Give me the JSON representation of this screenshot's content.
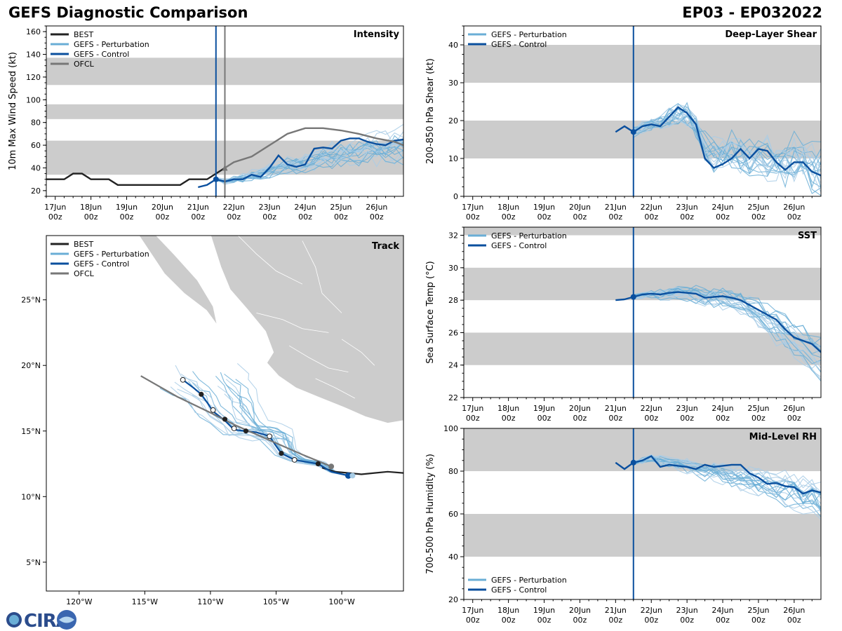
{
  "header": {
    "title_left": "GEFS Diagnostic Comparison",
    "title_right": "EP03 - EP032022"
  },
  "logo": {
    "text": "CIRA"
  },
  "colors": {
    "best": "#222222",
    "perturbation": "#6aaed6",
    "perturbation_light": "#a9cde6",
    "control": "#0a4f9e",
    "ofcl": "#777777",
    "band": "#cccccc",
    "land": "#cccccc"
  },
  "time_axis": {
    "ticks": [
      {
        "day": 0,
        "line1": "17Jun",
        "line2": "00z"
      },
      {
        "day": 1,
        "line1": "18Jun",
        "line2": "00z"
      },
      {
        "day": 2,
        "line1": "19Jun",
        "line2": "00z"
      },
      {
        "day": 3,
        "line1": "20Jun",
        "line2": "00z"
      },
      {
        "day": 4,
        "line1": "21Jun",
        "line2": "00z"
      },
      {
        "day": 5,
        "line1": "22Jun",
        "line2": "00z"
      },
      {
        "day": 6,
        "line1": "23Jun",
        "line2": "00z"
      },
      {
        "day": 7,
        "line1": "24Jun",
        "line2": "00z"
      },
      {
        "day": 8,
        "line1": "25Jun",
        "line2": "00z"
      },
      {
        "day": 9,
        "line1": "26Jun",
        "line2": "00z"
      }
    ],
    "range": [
      -0.25,
      9.75
    ],
    "init_day": 4.5
  },
  "chart_data": [
    {
      "id": "intensity",
      "type": "line",
      "title": "Intensity",
      "ylabel": "10m Max Wind Speed (kt)",
      "ylim": [
        15,
        165
      ],
      "yticks": [
        20,
        40,
        60,
        80,
        100,
        120,
        140,
        160
      ],
      "bands": [
        [
          34,
          64
        ],
        [
          83,
          96
        ],
        [
          113,
          137
        ]
      ],
      "ofcl_marker_day": 4.75,
      "legend": [
        "BEST",
        "GEFS - Perturbation",
        "GEFS - Control",
        "OFCL"
      ],
      "series": [
        {
          "name": "BEST",
          "x": [
            -0.25,
            0,
            0.25,
            0.5,
            0.75,
            1,
            1.25,
            1.5,
            1.75,
            2,
            2.25,
            2.5,
            2.75,
            3,
            3.25,
            3.5,
            3.75,
            4,
            4.25,
            4.5,
            4.75
          ],
          "y": [
            30,
            30,
            30,
            35,
            35,
            30,
            30,
            30,
            25,
            25,
            25,
            25,
            25,
            25,
            25,
            25,
            30,
            30,
            30,
            35,
            40
          ]
        },
        {
          "name": "GEFS - Control",
          "x": [
            4,
            4.25,
            4.5,
            4.75,
            5,
            5.25,
            5.5,
            5.75,
            6,
            6.25,
            6.5,
            6.75,
            7,
            7.25,
            7.5,
            7.75,
            8,
            8.25,
            8.5,
            8.75,
            9,
            9.25,
            9.5,
            9.75
          ],
          "y": [
            23,
            25,
            30,
            28,
            30,
            30,
            34,
            32,
            40,
            51,
            43,
            41,
            43,
            57,
            58,
            57,
            64,
            66,
            66,
            63,
            61,
            60,
            64,
            65
          ]
        },
        {
          "name": "OFCL",
          "x": [
            4.75,
            5,
            5.5,
            6,
            6.5,
            7,
            7.5,
            8,
            8.5,
            9,
            9.5,
            9.75
          ],
          "y": [
            40,
            45,
            50,
            60,
            70,
            75,
            75,
            73,
            70,
            66,
            63,
            60
          ]
        }
      ],
      "perturbation_mean": {
        "x": [
          4.5,
          4.75,
          5,
          5.25,
          5.5,
          5.75,
          6,
          6.25,
          6.5,
          6.75,
          7,
          7.25,
          7.5,
          7.75,
          8,
          8.25,
          8.5,
          8.75,
          9,
          9.25,
          9.5,
          9.75
        ],
        "y": [
          30,
          28,
          29,
          31,
          33,
          34,
          37,
          40,
          41,
          42,
          44,
          47,
          49,
          50,
          52,
          53,
          54,
          55,
          55,
          56,
          57,
          57
        ]
      }
    },
    {
      "id": "shear",
      "type": "line",
      "title": "Deep-Layer Shear",
      "ylabel": "200-850 hPa Shear (kt)",
      "ylim": [
        0,
        45
      ],
      "yticks": [
        0,
        10,
        20,
        30,
        40
      ],
      "bands": [
        [
          10,
          20
        ],
        [
          30,
          40
        ]
      ],
      "legend": [
        "GEFS - Perturbation",
        "GEFS - Control"
      ],
      "series": [
        {
          "name": "GEFS - Control",
          "x": [
            4,
            4.25,
            4.5,
            4.75,
            5,
            5.25,
            5.5,
            5.75,
            6,
            6.25,
            6.5,
            6.75,
            7,
            7.25,
            7.5,
            7.75,
            8,
            8.25,
            8.5,
            8.75,
            9,
            9.25,
            9.5,
            9.75
          ],
          "y": [
            17,
            18.5,
            17,
            18.5,
            19,
            18.5,
            21,
            23.5,
            22,
            19,
            10,
            7.5,
            8.5,
            10,
            12.5,
            10,
            12.5,
            12,
            9,
            7,
            9,
            9,
            6.5,
            5.5
          ]
        }
      ],
      "perturbation_mean": {
        "x": [
          4.5,
          4.75,
          5,
          5.25,
          5.5,
          5.75,
          6,
          6.25,
          6.5,
          6.75,
          7,
          7.25,
          7.5,
          7.75,
          8,
          8.25,
          8.5,
          8.75,
          9,
          9.25,
          9.5,
          9.75
        ],
        "y": [
          17,
          18,
          19,
          20,
          21,
          22,
          21,
          18,
          13,
          11,
          11,
          12,
          11,
          10,
          11,
          10,
          9,
          9,
          10,
          9,
          8,
          7
        ]
      }
    },
    {
      "id": "sst",
      "type": "line",
      "title": "SST",
      "ylabel": "Sea Surface Temp (°C)",
      "ylim": [
        22,
        32.5
      ],
      "yticks": [
        22,
        24,
        26,
        28,
        30,
        32
      ],
      "bands": [
        [
          24,
          26
        ],
        [
          28,
          30
        ],
        [
          32,
          32.5
        ]
      ],
      "legend": [
        "GEFS - Perturbation",
        "GEFS - Control"
      ],
      "series": [
        {
          "name": "GEFS - Control",
          "x": [
            4,
            4.25,
            4.5,
            4.75,
            5,
            5.25,
            5.5,
            5.75,
            6,
            6.25,
            6.5,
            6.75,
            7,
            7.25,
            7.5,
            7.75,
            8,
            8.25,
            8.5,
            8.75,
            9,
            9.25,
            9.5,
            9.75
          ],
          "y": [
            28,
            28.05,
            28.2,
            28.35,
            28.4,
            28.35,
            28.45,
            28.5,
            28.45,
            28.4,
            28.15,
            28.2,
            28.25,
            28.15,
            28.0,
            27.7,
            27.4,
            27.1,
            26.8,
            26.2,
            25.7,
            25.5,
            25.3,
            24.8
          ]
        }
      ],
      "perturbation_mean": {
        "x": [
          4.5,
          4.75,
          5,
          5.25,
          5.5,
          5.75,
          6,
          6.25,
          6.5,
          6.75,
          7,
          7.25,
          7.5,
          7.75,
          8,
          8.25,
          8.5,
          8.75,
          9,
          9.25,
          9.5,
          9.75
        ],
        "y": [
          28.2,
          28.3,
          28.4,
          28.35,
          28.4,
          28.45,
          28.4,
          28.35,
          28.2,
          28.2,
          28.15,
          28.0,
          27.8,
          27.5,
          27.2,
          26.8,
          26.4,
          26.0,
          25.6,
          25.2,
          24.8,
          24.4
        ]
      }
    },
    {
      "id": "rh",
      "type": "line",
      "title": "Mid-Level RH",
      "ylabel": "700-500 hPa Humidity (%)",
      "ylim": [
        20,
        100
      ],
      "yticks": [
        20,
        40,
        60,
        80,
        100
      ],
      "bands": [
        [
          40,
          60
        ],
        [
          80,
          100
        ]
      ],
      "legend": [
        "GEFS - Perturbation",
        "GEFS - Control"
      ],
      "series": [
        {
          "name": "GEFS - Control",
          "x": [
            4,
            4.25,
            4.5,
            4.75,
            5,
            5.25,
            5.5,
            5.75,
            6,
            6.25,
            6.5,
            6.75,
            7,
            7.25,
            7.5,
            7.75,
            8,
            8.25,
            8.5,
            8.75,
            9,
            9.25,
            9.5,
            9.75
          ],
          "y": [
            84,
            81,
            84,
            85,
            87,
            82,
            83,
            82.5,
            82,
            81,
            83,
            82,
            82.5,
            83,
            83,
            79,
            77,
            74,
            74.5,
            73,
            72.5,
            69.5,
            71,
            70
          ]
        }
      ],
      "perturbation_mean": {
        "x": [
          4.5,
          4.75,
          5,
          5.25,
          5.5,
          5.75,
          6,
          6.25,
          6.5,
          6.75,
          7,
          7.25,
          7.5,
          7.75,
          8,
          8.25,
          8.5,
          8.75,
          9,
          9.25,
          9.5,
          9.75
        ],
        "y": [
          84,
          85,
          86,
          85,
          84,
          83,
          82,
          81,
          80,
          80,
          79,
          78,
          77,
          76,
          75,
          74,
          72,
          71,
          70,
          68,
          67,
          65
        ]
      }
    },
    {
      "id": "track",
      "type": "scatter",
      "title": "Track",
      "xlim": [
        -122.5,
        -95.3
      ],
      "ylim": [
        2.8,
        29.9
      ],
      "xticks": [
        {
          "v": -120,
          "label": "120°W"
        },
        {
          "v": -115,
          "label": "115°W"
        },
        {
          "v": -110,
          "label": "110°W"
        },
        {
          "v": -105,
          "label": "105°W"
        },
        {
          "v": -100,
          "label": "100°W"
        }
      ],
      "yticks": [
        {
          "v": 5,
          "label": "5°N"
        },
        {
          "v": 10,
          "label": "10°N"
        },
        {
          "v": 15,
          "label": "15°N"
        },
        {
          "v": 20,
          "label": "20°N"
        },
        {
          "v": 25,
          "label": "25°N"
        }
      ],
      "legend": [
        "BEST",
        "GEFS - Perturbation",
        "GEFS - Control",
        "OFCL"
      ],
      "series": [
        {
          "name": "BEST",
          "lon": [
            -101.5,
            -100.5,
            -99.5,
            -98.5,
            -97.5,
            -96.5,
            -95.3
          ],
          "lat": [
            12.2,
            11.9,
            11.8,
            11.7,
            11.8,
            11.9,
            11.8
          ]
        },
        {
          "name": "GEFS - Control",
          "lon": [
            -99.5,
            -100.8,
            -101.8,
            -103.6,
            -104.6,
            -105.1,
            -105.5,
            -106.5,
            -107.3,
            -108.2,
            -108.9,
            -109.8,
            -110.2,
            -110.7,
            -111.3,
            -112.1
          ],
          "lat": [
            11.6,
            11.9,
            12.5,
            12.8,
            13.3,
            14.0,
            14.6,
            14.9,
            15.0,
            15.1,
            15.8,
            16.5,
            17.1,
            17.8,
            18.3,
            18.9
          ]
        },
        {
          "name": "OFCL",
          "lon": [
            -100.8,
            -103.0,
            -105.5,
            -108.0,
            -110.0,
            -112.5,
            -115.3
          ],
          "lat": [
            12.3,
            13.2,
            14.3,
            15.4,
            16.4,
            17.6,
            19.2
          ]
        }
      ],
      "control_points_dark": [
        [
          -110.7,
          17.8
        ],
        [
          -108.9,
          15.9
        ],
        [
          -107.3,
          15.0
        ],
        [
          -104.6,
          13.3
        ],
        [
          -101.8,
          12.5
        ]
      ],
      "control_points_open": [
        [
          -112.1,
          18.9
        ],
        [
          -109.8,
          16.6
        ],
        [
          -108.2,
          15.2
        ],
        [
          -105.5,
          14.6
        ],
        [
          -103.6,
          12.8
        ]
      ],
      "control_start": [
        -99.5,
        11.6
      ],
      "ofcl_start": [
        -100.8,
        12.3
      ]
    }
  ]
}
